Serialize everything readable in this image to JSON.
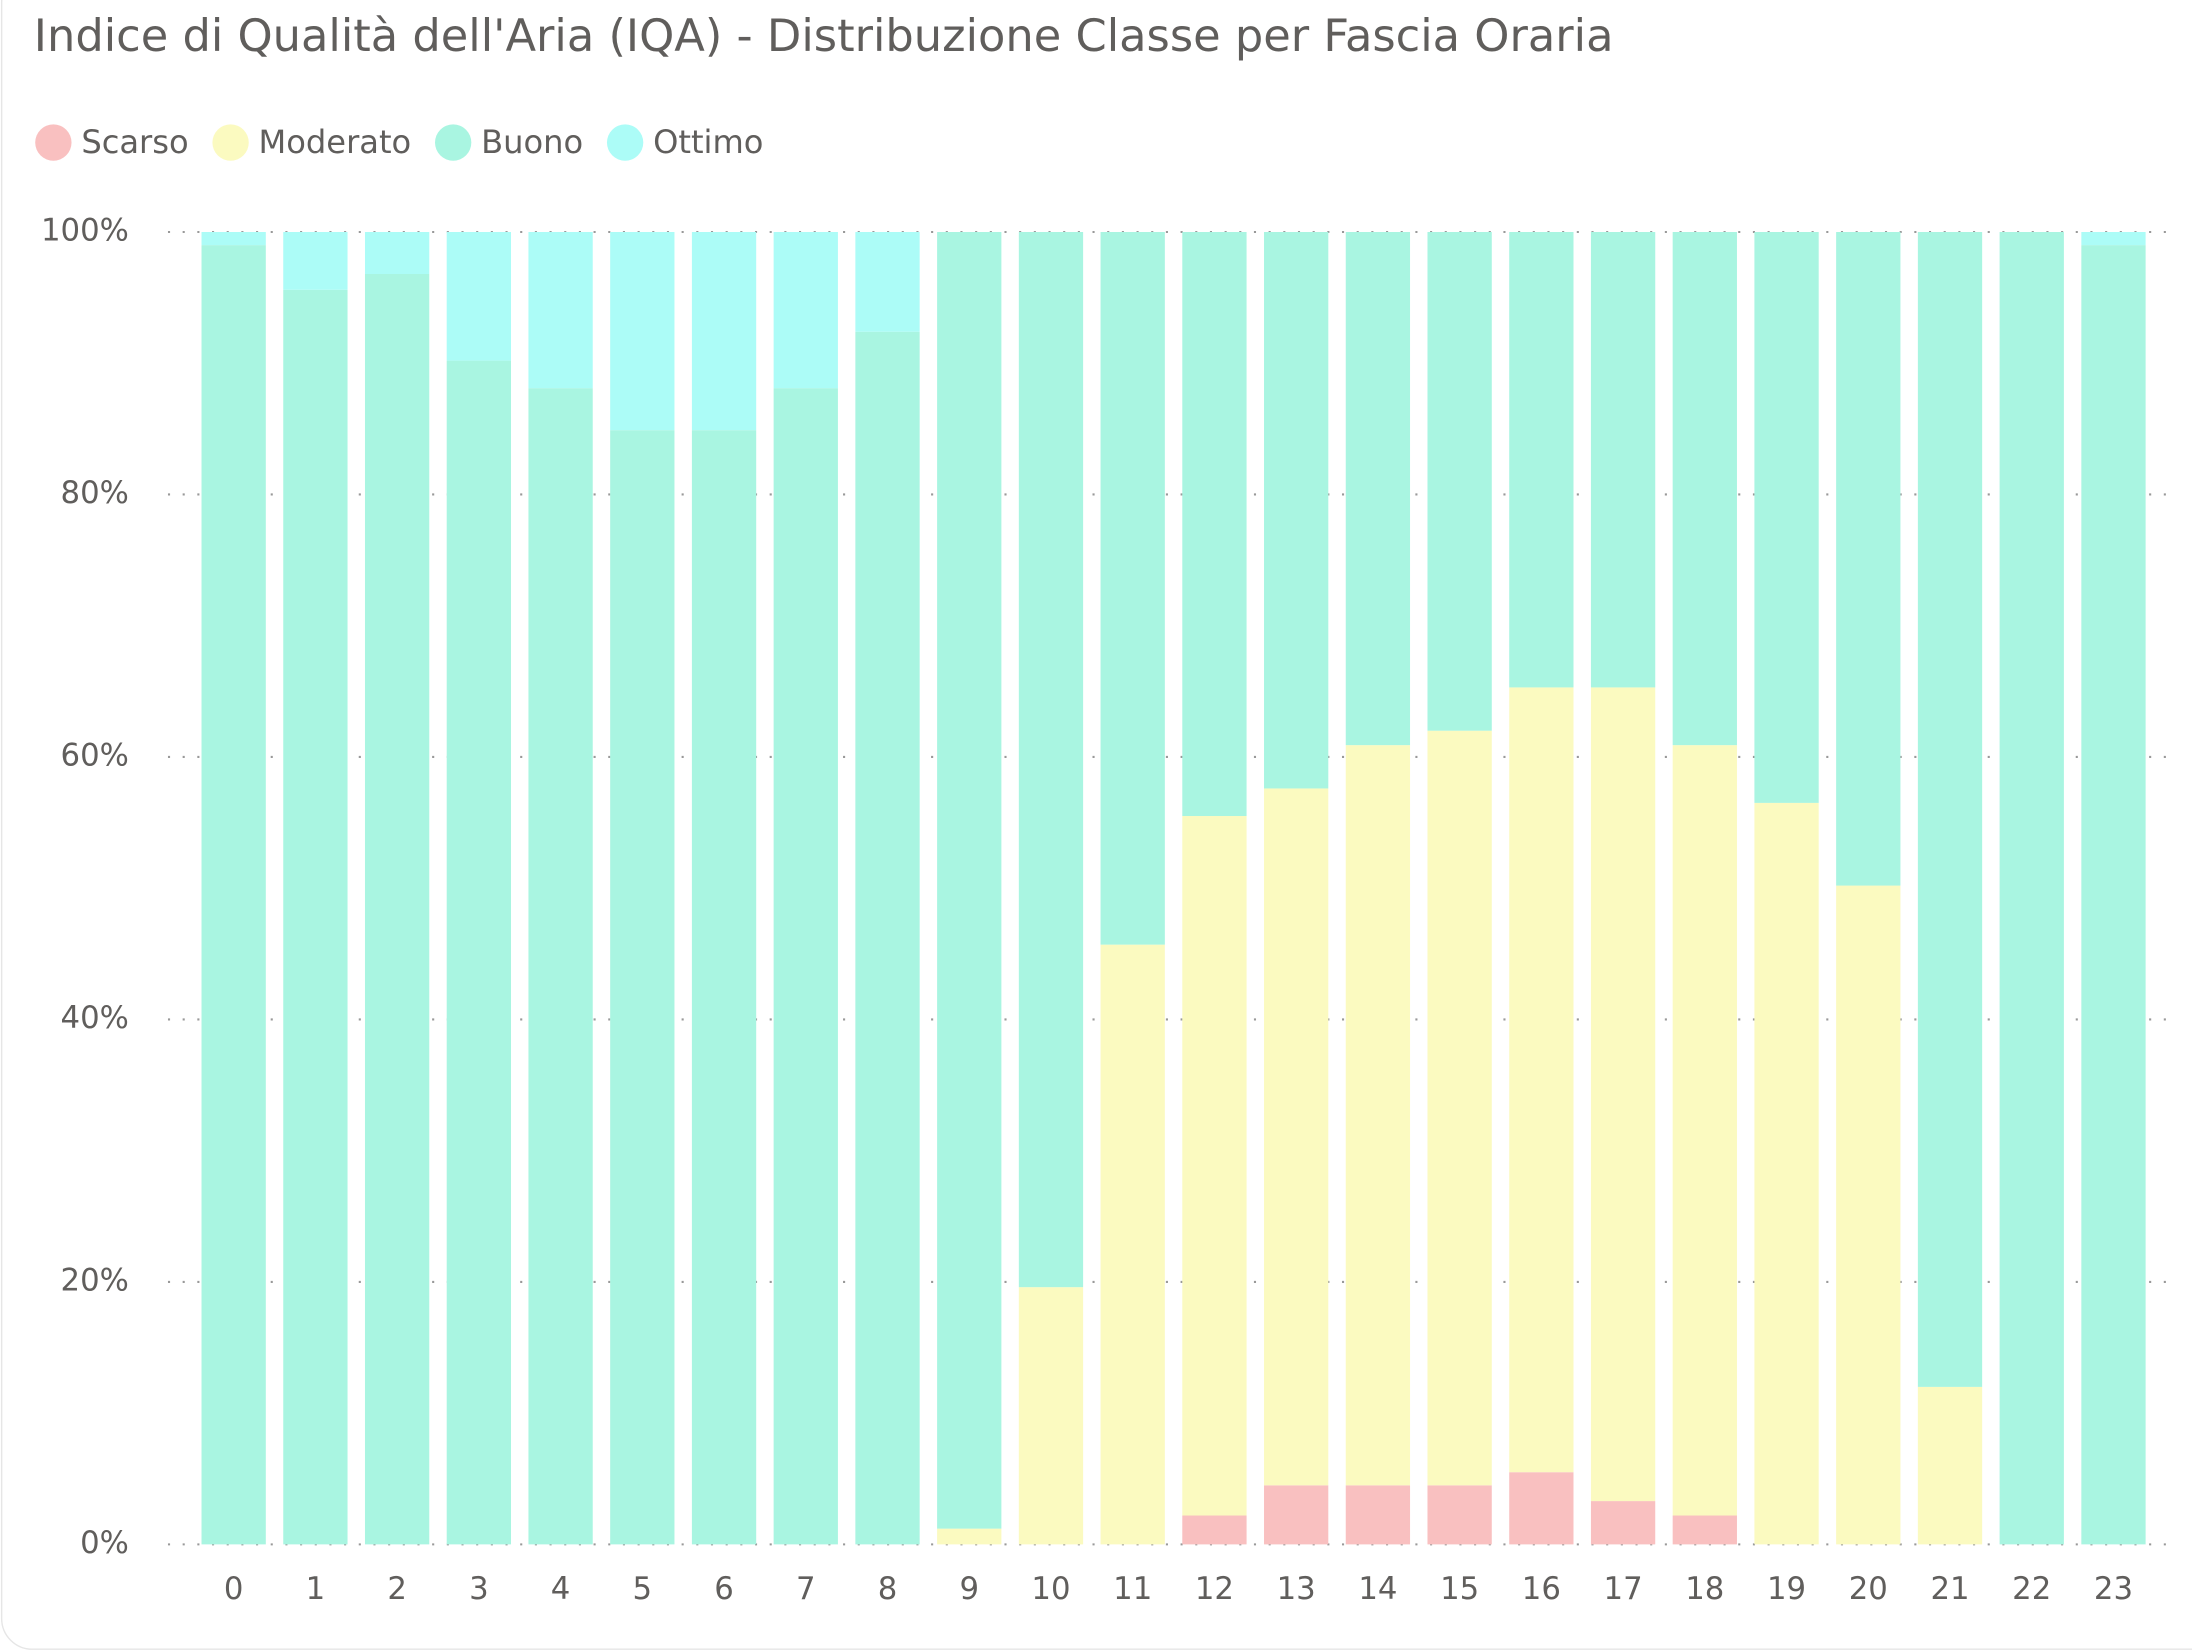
{
  "chart_data": {
    "type": "stacked_bar",
    "title": "Indice di Qualità dell'Aria (IQA) - Distribuzione Classe per Fascia Oraria",
    "categories": [
      "0",
      "1",
      "2",
      "3",
      "4",
      "5",
      "6",
      "7",
      "8",
      "9",
      "10",
      "11",
      "12",
      "13",
      "14",
      "15",
      "16",
      "17",
      "18",
      "19",
      "20",
      "21",
      "22",
      "23"
    ],
    "series": [
      {
        "name": "Scarso",
        "color": "#f9c0c0",
        "values": [
          0,
          0,
          0,
          0,
          0,
          0,
          0,
          0,
          0,
          0,
          0,
          0,
          2.2,
          4.5,
          4.5,
          4.5,
          5.5,
          3.3,
          2.2,
          0,
          0,
          0,
          0,
          0
        ]
      },
      {
        "name": "Moderato",
        "color": "#fbfac0",
        "values": [
          0,
          0,
          0,
          0,
          0,
          0,
          0,
          0,
          0,
          1.2,
          19.6,
          45.7,
          53.3,
          53.1,
          56.4,
          57.5,
          59.8,
          62,
          58.7,
          56.5,
          50.2,
          12,
          0,
          0
        ]
      },
      {
        "name": "Buono",
        "color": "#a9f5e1",
        "values": [
          99,
          95.6,
          96.8,
          90.2,
          88.1,
          84.9,
          84.9,
          88.1,
          92.4,
          98.8,
          80.4,
          54.3,
          44.5,
          42.4,
          39.1,
          38,
          34.7,
          34.7,
          39.1,
          43.5,
          49.8,
          88,
          100,
          99
        ]
      },
      {
        "name": "Ottimo",
        "color": "#acfcf7",
        "values": [
          1,
          4.4,
          3.2,
          9.8,
          11.9,
          15.1,
          15.1,
          11.9,
          7.6,
          0,
          0,
          0,
          0,
          0,
          0,
          0,
          0,
          0,
          0,
          0,
          0,
          0,
          0,
          1
        ]
      }
    ],
    "ylim": [
      0,
      100
    ],
    "yticks": [
      {
        "value": 0,
        "label": "0%"
      },
      {
        "value": 20,
        "label": "20%"
      },
      {
        "value": 40,
        "label": "40%"
      },
      {
        "value": 60,
        "label": "60%"
      },
      {
        "value": 80,
        "label": "80%"
      },
      {
        "value": 100,
        "label": "100%"
      }
    ],
    "grid": true
  }
}
